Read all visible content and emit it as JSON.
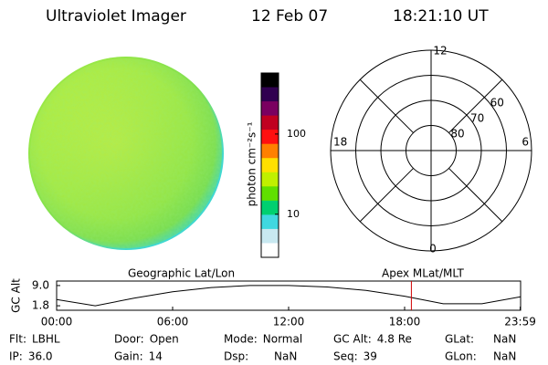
{
  "header": {
    "instrument": "Ultraviolet Imager",
    "date": "12 Feb 07",
    "time": "18:21:10 UT"
  },
  "colorbar": {
    "label": "photon cm⁻²s⁻¹",
    "log": true,
    "range": [
      2.9,
      577
    ],
    "ticks": [
      10,
      100
    ],
    "colors": [
      "#000000",
      "#300050",
      "#7a0060",
      "#c00020",
      "#ff1010",
      "#ff8000",
      "#ffe000",
      "#c0f000",
      "#60e000",
      "#00d070",
      "#40d8e0",
      "#c8e8f0",
      "#ffffff"
    ]
  },
  "polar": {
    "mlt_labels": [
      "12",
      "18",
      "6",
      "0"
    ],
    "lat_rings": [
      80,
      70,
      60
    ],
    "outer_lat": 50
  },
  "altitude_plot": {
    "ylabel": "GC Alt",
    "left_title": "Geographic Lat/Lon",
    "right_title": "Apex MLat/MLT",
    "x": [
      0,
      2,
      4,
      6,
      8,
      10,
      12,
      14,
      16,
      18,
      20,
      22,
      24
    ],
    "values": [
      4.0,
      1.8,
      4.5,
      6.8,
      8.3,
      9.0,
      9.0,
      8.5,
      7.3,
      5.2,
      2.5,
      2.5,
      5.0
    ],
    "xlim": [
      0,
      24
    ],
    "ylim": [
      0.2,
      10.6
    ],
    "yticks": [
      {
        "value": 9,
        "label": "9.0"
      },
      1.8
    ],
    "xticks": [
      {
        "value": 0,
        "label": "00:00"
      },
      {
        "value": 6,
        "label": "06:00"
      },
      {
        "value": 12,
        "label": "12:00"
      },
      {
        "value": 18,
        "label": "18:00"
      },
      {
        "value": 23.98,
        "label": "23:59"
      }
    ],
    "current_time": 18.35
  },
  "status": [
    [
      {
        "label": "Flt:",
        "value": "LBHL"
      },
      {
        "label": "Door:",
        "value": "Open"
      },
      {
        "label": "Mode:",
        "value": "Normal"
      },
      {
        "label": "GC Alt:",
        "value": "4.8 Re"
      },
      {
        "label": "GLat:",
        "value": "NaN"
      }
    ],
    [
      {
        "label": "IP:",
        "value": "36.0"
      },
      {
        "label": "Gain:",
        "value": "14"
      },
      {
        "label": "Dsp:",
        "value": "NaN"
      },
      {
        "label": "Seq:",
        "value": "39"
      },
      {
        "label": "GLon:",
        "value": "NaN"
      }
    ]
  ]
}
